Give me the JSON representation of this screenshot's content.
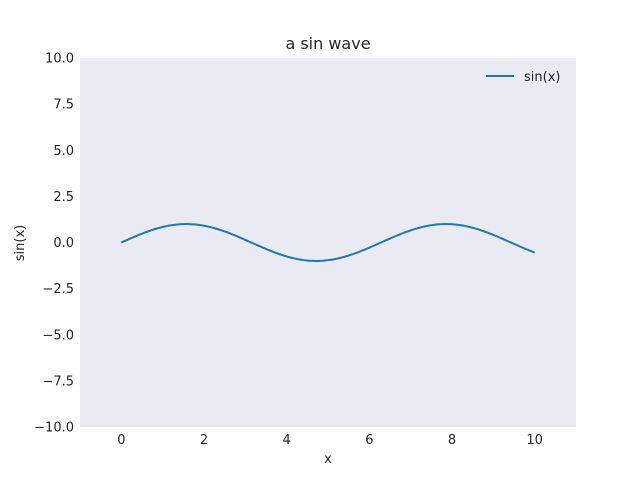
{
  "chart_data": {
    "type": "line",
    "title": "a sin wave",
    "xlabel": "x",
    "ylabel": "sin(x)",
    "xlim": [
      -1,
      11
    ],
    "ylim": [
      -10,
      10
    ],
    "x_ticks": [
      "0",
      "2",
      "4",
      "6",
      "8",
      "10"
    ],
    "y_ticks": [
      "10.0",
      "7.5",
      "5.0",
      "2.5",
      "0.0",
      "−2.5",
      "−5.0",
      "−7.5",
      "−10.0"
    ],
    "grid": false,
    "legend_position": "top-right",
    "series": [
      {
        "name": "sin(x)",
        "color": "#1f77b4",
        "function": "sin(x)",
        "x_range": [
          0,
          10
        ]
      }
    ]
  }
}
